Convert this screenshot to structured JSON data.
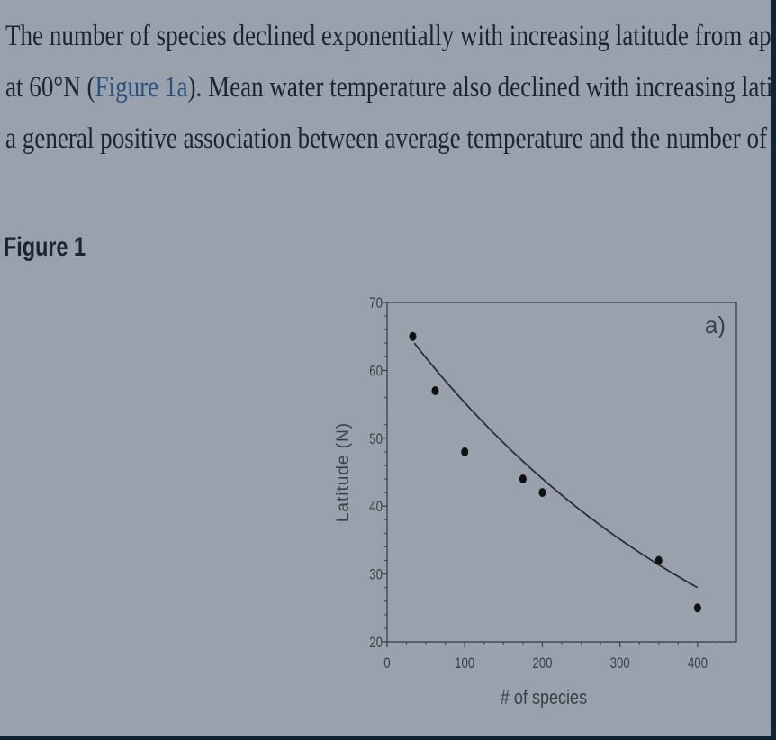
{
  "paragraph": {
    "line1": "The number of species declined exponentially with increasing latitude from ap",
    "line2_before": "at 60°N (",
    "line2_link": "Figure 1a",
    "line2_after": "). Mean water temperature also declined with increasing latit",
    "line3": "a general positive association between average temperature and the number of"
  },
  "figure": {
    "heading": "Figure 1"
  },
  "chart_data": {
    "type": "scatter",
    "panel_label": "a)",
    "xlabel": "# of species",
    "ylabel": "Latitude (N)",
    "xlim": [
      0,
      450
    ],
    "ylim": [
      20,
      70
    ],
    "x_ticks": [
      0,
      100,
      200,
      300,
      400
    ],
    "y_ticks": [
      20,
      30,
      40,
      50,
      60,
      70
    ],
    "points": [
      {
        "x": 33,
        "y": 65
      },
      {
        "x": 62,
        "y": 57
      },
      {
        "x": 100,
        "y": 48
      },
      {
        "x": 175,
        "y": 44
      },
      {
        "x": 200,
        "y": 42
      },
      {
        "x": 350,
        "y": 32
      },
      {
        "x": 400,
        "y": 25
      }
    ],
    "fit": {
      "type": "exponential",
      "x_range": [
        35,
        400
      ],
      "y_at_start": 64,
      "y_at_end": 28
    },
    "colors": {
      "points": "#111111",
      "axes": "#3a3f46",
      "text": "#3a3f46"
    }
  }
}
